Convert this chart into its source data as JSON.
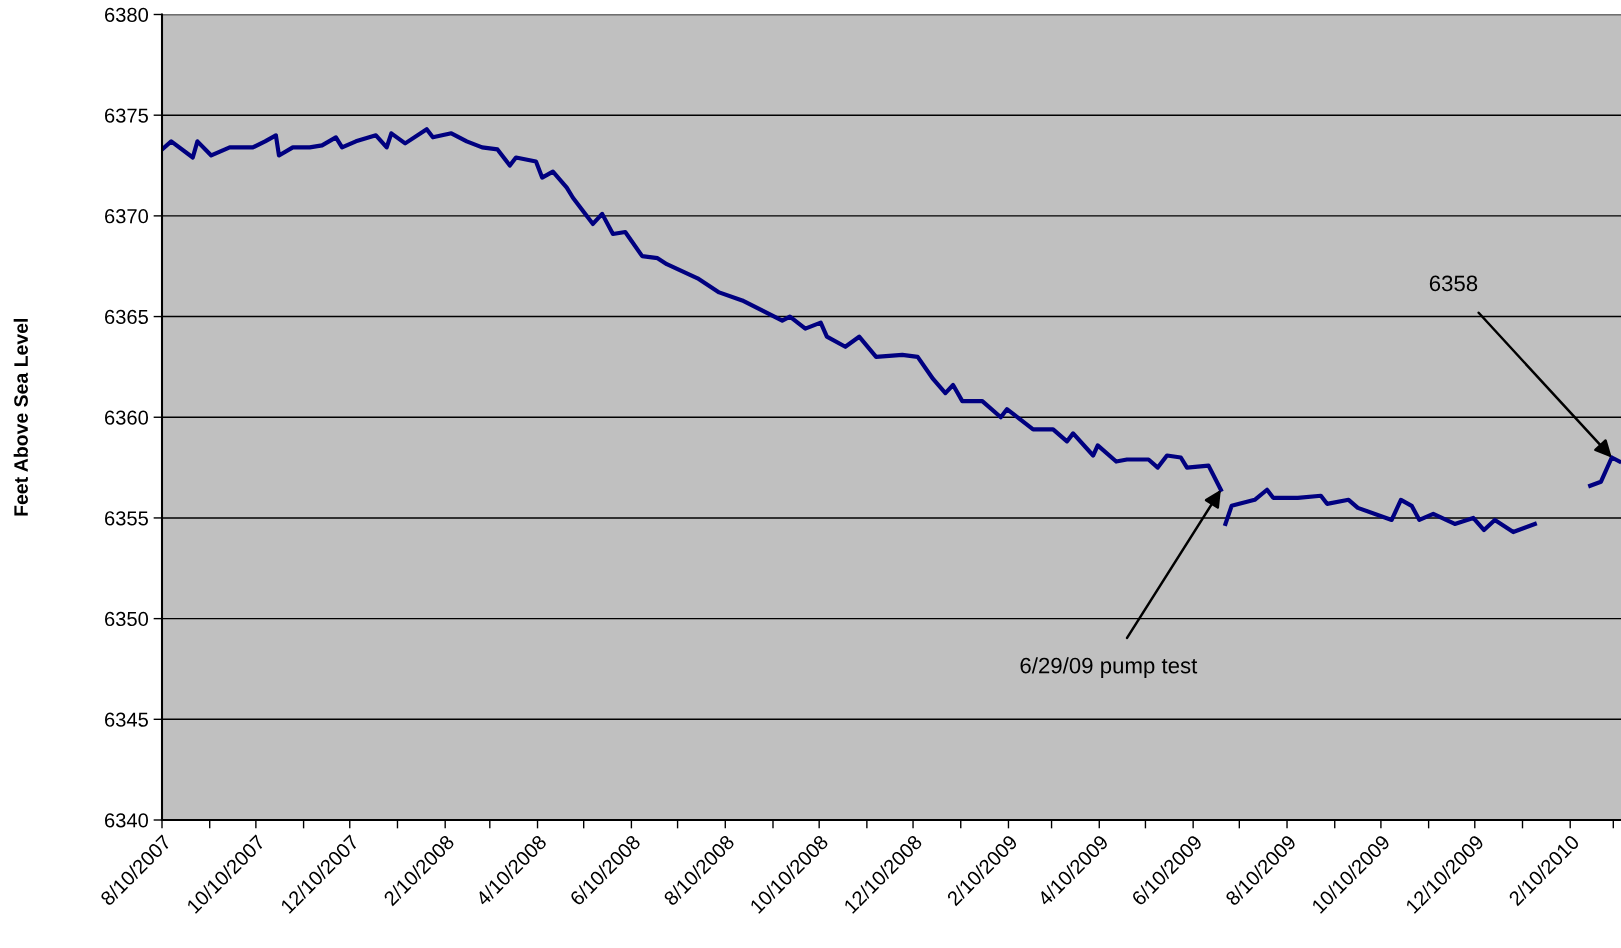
{
  "chart_data": {
    "type": "line",
    "ylabel": "Feet Above Sea Level",
    "x": [
      "2007-08-10",
      "2007-08-16",
      "2007-08-30",
      "2007-09-02",
      "2007-09-11",
      "2007-09-23",
      "2007-10-08",
      "2007-10-16",
      "2007-10-23",
      "2007-10-25",
      "2007-11-03",
      "2007-11-14",
      "2007-11-22",
      "2007-12-01",
      "2007-12-05",
      "2007-12-14",
      "2007-12-27",
      "2008-01-03",
      "2008-01-06",
      "2008-01-15",
      "2008-01-29",
      "2008-02-02",
      "2008-02-14",
      "2008-02-24",
      "2008-03-05",
      "2008-03-15",
      "2008-03-23",
      "2008-03-27",
      "2008-04-09",
      "2008-04-13",
      "2008-04-20",
      "2008-04-29",
      "2008-05-03",
      "2008-05-16",
      "2008-05-22",
      "2008-05-29",
      "2008-06-06",
      "2008-06-17",
      "2008-06-27",
      "2008-07-03",
      "2008-07-23",
      "2008-08-06",
      "2008-08-21",
      "2008-09-16",
      "2008-09-21",
      "2008-10-01",
      "2008-10-11",
      "2008-10-15",
      "2008-10-27",
      "2008-11-05",
      "2008-11-16",
      "2008-12-03",
      "2008-12-13",
      "2008-12-23",
      "2008-12-31",
      "2009-01-05",
      "2009-01-11",
      "2009-01-24",
      "2009-02-05",
      "2009-02-09",
      "2009-02-26",
      "2009-03-11",
      "2009-03-20",
      "2009-03-24",
      "2009-04-06",
      "2009-04-09",
      "2009-04-21",
      "2009-04-28",
      "2009-05-12",
      "2009-05-18",
      "2009-05-24",
      "2009-06-02",
      "2009-06-06",
      "2009-06-20",
      "2009-06-28",
      "2009-06-29",
      "2009-07-01",
      "2009-07-05",
      "2009-07-20",
      "2009-07-28",
      "2009-08-01",
      "2009-08-17",
      "2009-09-01",
      "2009-09-05",
      "2009-09-19",
      "2009-09-25",
      "2009-10-17",
      "2009-10-23",
      "2009-10-30",
      "2009-11-04",
      "2009-11-13",
      "2009-11-27",
      "2009-12-09",
      "2009-12-16",
      "2009-12-23",
      "2010-01-04",
      "2010-01-18",
      "2010-02-01",
      "2010-02-23",
      "2010-03-02",
      "2010-03-09",
      "2010-03-14"
    ],
    "series": [
      {
        "color": "#000080",
        "values": [
          6373.3,
          6373.7,
          6372.9,
          6373.7,
          6373.0,
          6373.4,
          6373.4,
          6373.7,
          6374.0,
          6373.0,
          6373.4,
          6373.4,
          6373.5,
          6373.9,
          6373.4,
          6373.7,
          6374.0,
          6373.4,
          6374.1,
          6373.6,
          6374.3,
          6373.9,
          6374.1,
          6373.7,
          6373.4,
          6373.3,
          6372.5,
          6372.9,
          6372.7,
          6371.9,
          6372.2,
          6371.4,
          6370.9,
          6369.6,
          6370.1,
          6369.1,
          6369.2,
          6368.0,
          6367.9,
          6367.6,
          6366.9,
          6366.2,
          6365.8,
          6364.8,
          6365.0,
          6364.4,
          6364.7,
          6364.0,
          6363.5,
          6364.0,
          6363.0,
          6363.1,
          6363.0,
          6361.9,
          6361.2,
          6361.6,
          6360.8,
          6360.8,
          6360.0,
          6360.4,
          6359.4,
          6359.4,
          6358.8,
          6359.2,
          6358.1,
          6358.6,
          6357.8,
          6357.9,
          6357.9,
          6357.5,
          6358.1,
          6358.0,
          6357.5,
          6357.6,
          6356.4,
          null,
          6354.7,
          6355.6,
          6355.9,
          6356.4,
          6356.0,
          6356.0,
          6356.1,
          6355.7,
          6355.9,
          6355.5,
          6354.9,
          6355.9,
          6355.6,
          6354.9,
          6355.2,
          6354.7,
          6355.0,
          6354.4,
          6354.9,
          6354.3,
          6354.7,
          null,
          6356.6,
          6356.8,
          6358.0,
          6357.8
        ]
      }
    ],
    "xlim": [
      "2007-08-10",
      "2010-03-15"
    ],
    "xticks": [
      {
        "value": "2007-08-10",
        "label": "8/10/2007"
      },
      {
        "value": "2007-09-10",
        "label": null
      },
      {
        "value": "2007-10-10",
        "label": "10/10/2007"
      },
      {
        "value": "2007-11-10",
        "label": null
      },
      {
        "value": "2007-12-10",
        "label": "12/10/2007"
      },
      {
        "value": "2008-01-10",
        "label": null
      },
      {
        "value": "2008-02-10",
        "label": "2/10/2008"
      },
      {
        "value": "2008-03-10",
        "label": null
      },
      {
        "value": "2008-04-10",
        "label": "4/10/2008"
      },
      {
        "value": "2008-05-10",
        "label": null
      },
      {
        "value": "2008-06-10",
        "label": "6/10/2008"
      },
      {
        "value": "2008-07-10",
        "label": null
      },
      {
        "value": "2008-08-10",
        "label": "8/10/2008"
      },
      {
        "value": "2008-09-10",
        "label": null
      },
      {
        "value": "2008-10-10",
        "label": "10/10/2008"
      },
      {
        "value": "2008-11-10",
        "label": null
      },
      {
        "value": "2008-12-10",
        "label": "12/10/2008"
      },
      {
        "value": "2009-01-10",
        "label": null
      },
      {
        "value": "2009-02-10",
        "label": "2/10/2009"
      },
      {
        "value": "2009-03-10",
        "label": null
      },
      {
        "value": "2009-04-10",
        "label": "4/10/2009"
      },
      {
        "value": "2009-05-10",
        "label": null
      },
      {
        "value": "2009-06-10",
        "label": "6/10/2009"
      },
      {
        "value": "2009-07-10",
        "label": null
      },
      {
        "value": "2009-08-10",
        "label": "8/10/2009"
      },
      {
        "value": "2009-09-10",
        "label": null
      },
      {
        "value": "2009-10-10",
        "label": "10/10/2009"
      },
      {
        "value": "2009-11-10",
        "label": null
      },
      {
        "value": "2009-12-10",
        "label": "12/10/2009"
      },
      {
        "value": "2010-01-10",
        "label": null
      },
      {
        "value": "2010-02-10",
        "label": "2/10/2010"
      },
      {
        "value": "2010-03-10",
        "label": null
      }
    ],
    "ylim": [
      6340,
      6380
    ],
    "yticks": [
      6340,
      6345,
      6350,
      6355,
      6360,
      6365,
      6370,
      6375,
      6380
    ],
    "grid": "y",
    "legend": false,
    "marker": "none",
    "line_style": "solid",
    "annotations": [
      {
        "text": "6358",
        "x": "2010-03-09",
        "y": 6358.0
      },
      {
        "text": "6/29/09 pump test",
        "x": "2009-06-28",
        "y": 6356.4
      }
    ]
  }
}
